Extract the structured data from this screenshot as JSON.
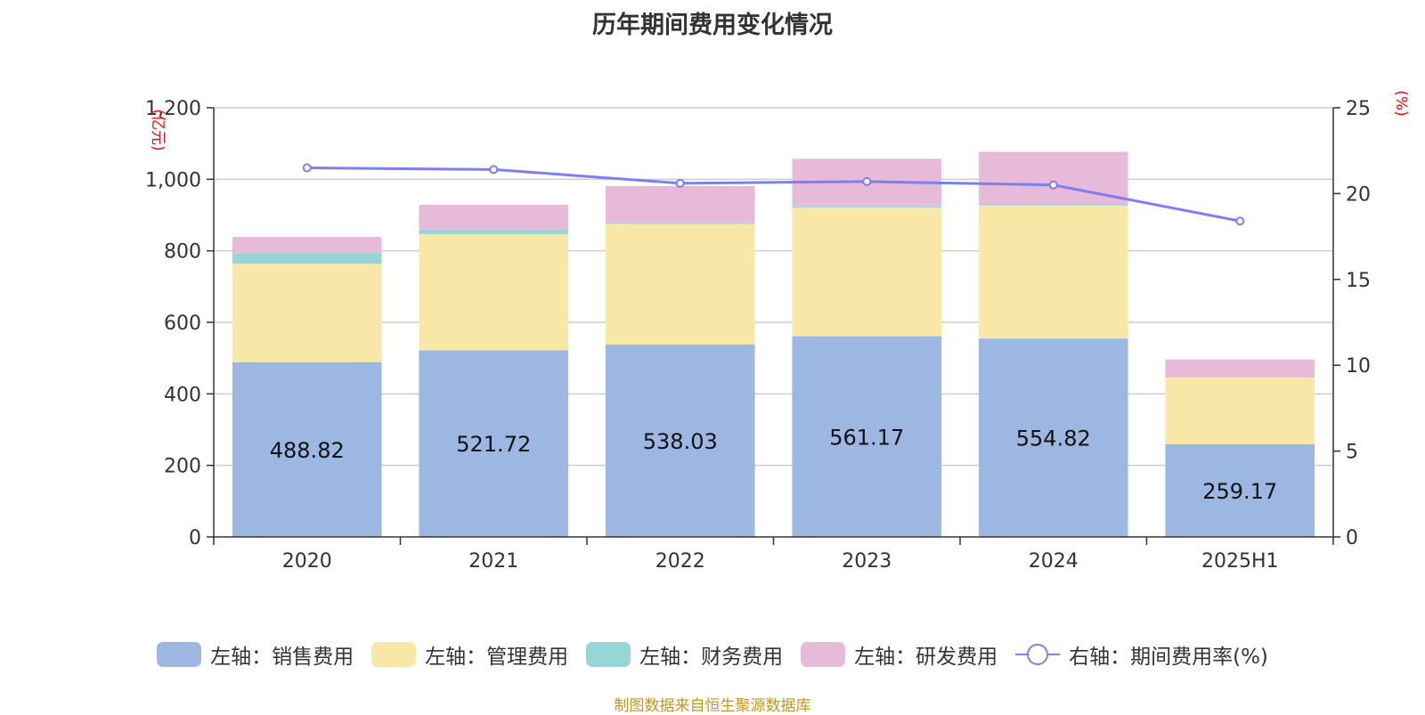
{
  "title": "历年期间费用变化情况",
  "source": "制图数据来自恒生聚源数据库",
  "chart_data": {
    "type": "bar",
    "stacked": true,
    "title": "历年期间费用变化情况",
    "categories": [
      "2020",
      "2021",
      "2022",
      "2023",
      "2024",
      "2025H1"
    ],
    "left_axis": {
      "unit": "(亿元)",
      "ylim": [
        0,
        1200
      ],
      "ticks": [
        0,
        200,
        400,
        600,
        800,
        1000,
        1200
      ],
      "tick_labels": [
        "0",
        "200",
        "400",
        "600",
        "800",
        "1,000",
        "1,200"
      ]
    },
    "right_axis": {
      "unit": "(%)",
      "ylim": [
        0,
        25
      ],
      "ticks": [
        0,
        5,
        10,
        15,
        20,
        25
      ],
      "tick_labels": [
        "0",
        "5",
        "10",
        "15",
        "20",
        "25"
      ]
    },
    "grid": true,
    "legend_position": "bottom",
    "series": [
      {
        "name": "左轴：销售费用",
        "type": "bar",
        "axis": "left",
        "color": "#9cb8e2",
        "values": [
          488.82,
          521.72,
          538.03,
          561.17,
          554.82,
          259.17
        ],
        "labels": [
          "488.82",
          "521.72",
          "538.03",
          "561.17",
          "554.82",
          "259.17"
        ]
      },
      {
        "name": "左轴：管理费用",
        "type": "bar",
        "axis": "left",
        "color": "#f8e8a8",
        "values": [
          275,
          325,
          337,
          360,
          372,
          187
        ],
        "labels": []
      },
      {
        "name": "左轴：财务费用",
        "type": "bar",
        "axis": "left",
        "color": "#98d5d6",
        "values": [
          30,
          12,
          3,
          3,
          3,
          2
        ],
        "labels": []
      },
      {
        "name": "左轴：研发费用",
        "type": "bar",
        "axis": "left",
        "color": "#e8bad9",
        "values": [
          45,
          70,
          103,
          133,
          147,
          48
        ],
        "labels": []
      },
      {
        "name": "右轴：期间费用率(%)",
        "type": "line",
        "axis": "right",
        "color": "#7b7ff0",
        "values": [
          21.5,
          21.4,
          20.6,
          20.7,
          20.5,
          18.4
        ]
      }
    ]
  }
}
